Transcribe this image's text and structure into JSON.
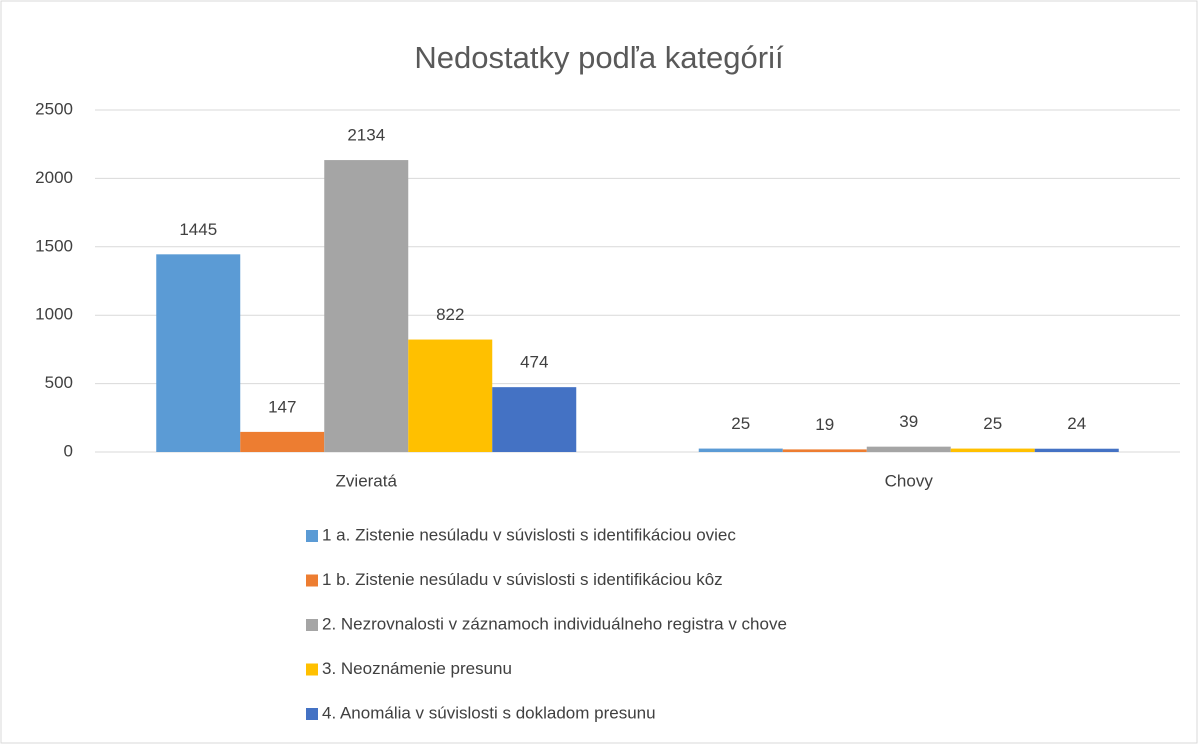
{
  "chart_data": {
    "type": "bar",
    "title": "Nedostatky podľa kategórií",
    "categories": [
      "Zvieratá",
      "Chovy"
    ],
    "series": [
      {
        "name": "1 a. Zistenie nesúladu v súvislosti s identifikáciou oviec",
        "color": "#5b9bd5",
        "values": [
          1445,
          25
        ]
      },
      {
        "name": "1 b. Zistenie nesúladu v súvislosti s identifikáciou kôz",
        "color": "#ed7d31",
        "values": [
          147,
          19
        ]
      },
      {
        "name": "2. Nezrovnalosti v záznamoch individuálneho registra v chove",
        "color": "#a5a5a5",
        "values": [
          2134,
          39
        ]
      },
      {
        "name": "3. Neoznámenie presunu",
        "color": "#ffc000",
        "values": [
          822,
          25
        ]
      },
      {
        "name": "4. Anomália v súvislosti s dokladom presunu",
        "color": "#4472c4",
        "values": [
          474,
          24
        ]
      }
    ],
    "ylim": [
      0,
      2500
    ],
    "yticks": [
      0,
      500,
      1000,
      1500,
      2000,
      2500
    ],
    "grid": true,
    "legend": "bottom"
  }
}
